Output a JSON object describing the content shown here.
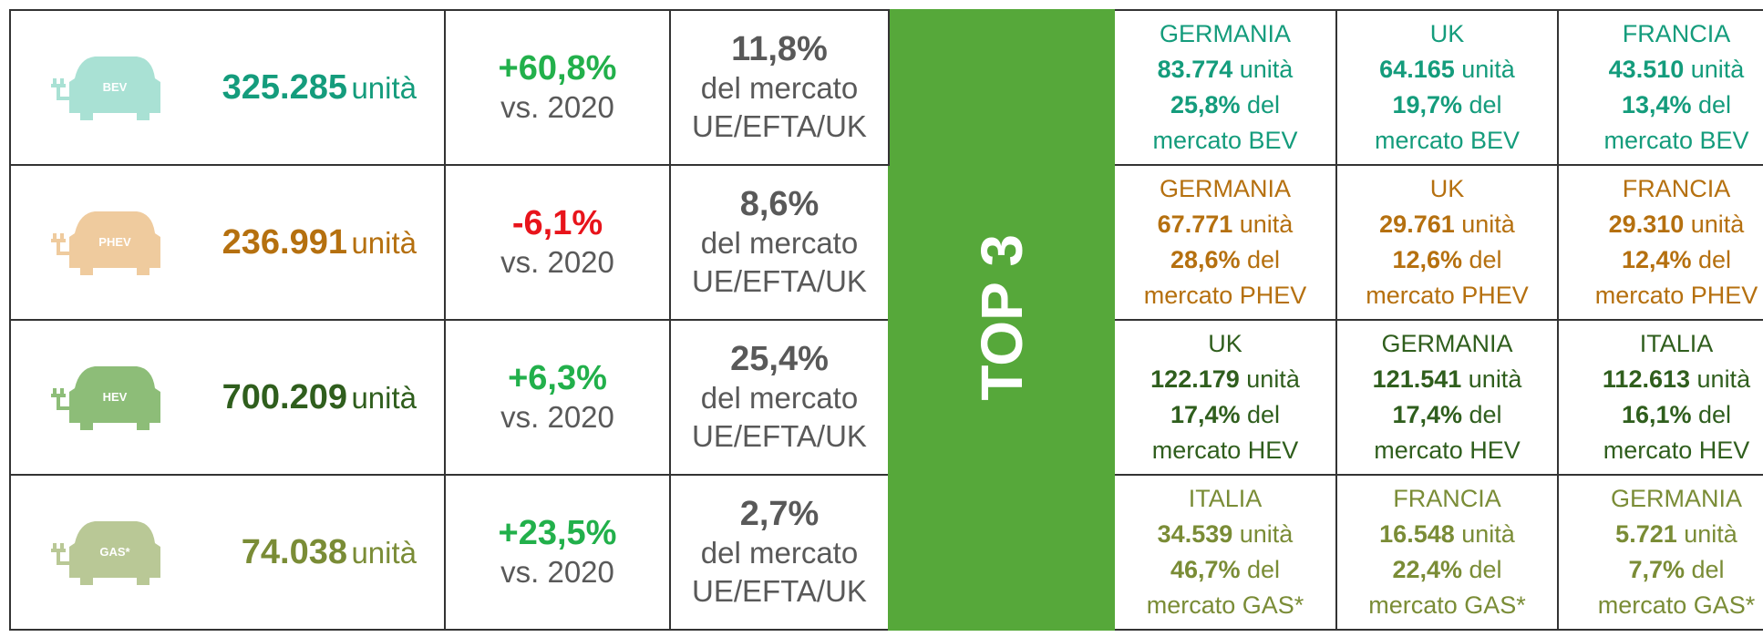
{
  "rows": [
    {
      "icon": "BEV",
      "units": "325.285",
      "unit_label": "unità",
      "growth": "+60,8%",
      "vs": "vs. 2020",
      "share": "11,8%",
      "share_l1": "del mercato",
      "share_l2": "UE/EFTA/UK",
      "top": [
        {
          "country": "GERMANIA",
          "units": "83.774",
          "unit_label": "unità",
          "pct": "25,8%",
          "del": "del",
          "market": "mercato BEV"
        },
        {
          "country": "UK",
          "units": "64.165",
          "unit_label": "unità",
          "pct": "19,7%",
          "del": "del",
          "market": "mercato BEV"
        },
        {
          "country": "FRANCIA",
          "units": "43.510",
          "unit_label": "unità",
          "pct": "13,4%",
          "del": "del",
          "market": "mercato BEV"
        }
      ]
    },
    {
      "icon": "PHEV",
      "units": "236.991",
      "unit_label": "unità",
      "growth": "-6,1%",
      "vs": "vs. 2020",
      "share": "8,6%",
      "share_l1": "del mercato",
      "share_l2": "UE/EFTA/UK",
      "top": [
        {
          "country": "GERMANIA",
          "units": "67.771",
          "unit_label": "unità",
          "pct": "28,6%",
          "del": "del",
          "market": "mercato PHEV"
        },
        {
          "country": "UK",
          "units": "29.761",
          "unit_label": "unità",
          "pct": "12,6%",
          "del": "del",
          "market": "mercato PHEV"
        },
        {
          "country": "FRANCIA",
          "units": "29.310",
          "unit_label": "unità",
          "pct": "12,4%",
          "del": "del",
          "market": "mercato PHEV"
        }
      ]
    },
    {
      "icon": "HEV",
      "units": "700.209",
      "unit_label": "unità",
      "growth": "+6,3%",
      "vs": "vs. 2020",
      "share": "25,4%",
      "share_l1": "del mercato",
      "share_l2": "UE/EFTA/UK",
      "top": [
        {
          "country": "UK",
          "units": "122.179",
          "unit_label": "unità",
          "pct": "17,4%",
          "del": "del",
          "market": "mercato HEV"
        },
        {
          "country": "GERMANIA",
          "units": "121.541",
          "unit_label": "unità",
          "pct": "17,4%",
          "del": "del",
          "market": "mercato HEV"
        },
        {
          "country": "ITALIA",
          "units": "112.613",
          "unit_label": "unità",
          "pct": "16,1%",
          "del": "del",
          "market": "mercato HEV"
        }
      ]
    },
    {
      "icon": "GAS*",
      "units": "74.038",
      "unit_label": "unità",
      "growth": "+23,5%",
      "vs": "vs. 2020",
      "share": "2,7%",
      "share_l1": "del mercato",
      "share_l2": "UE/EFTA/UK",
      "top": [
        {
          "country": "ITALIA",
          "units": "34.539",
          "unit_label": "unità",
          "pct": "46,7%",
          "del": "del",
          "market": "mercato GAS*"
        },
        {
          "country": "FRANCIA",
          "units": "16.548",
          "unit_label": "unità",
          "pct": "22,4%",
          "del": "del",
          "market": "mercato GAS*"
        },
        {
          "country": "GERMANIA",
          "units": "5.721",
          "unit_label": "unità",
          "pct": "7,7%",
          "del": "del",
          "market": "mercato GAS*"
        }
      ]
    }
  ],
  "top3_label": "TOP 3"
}
